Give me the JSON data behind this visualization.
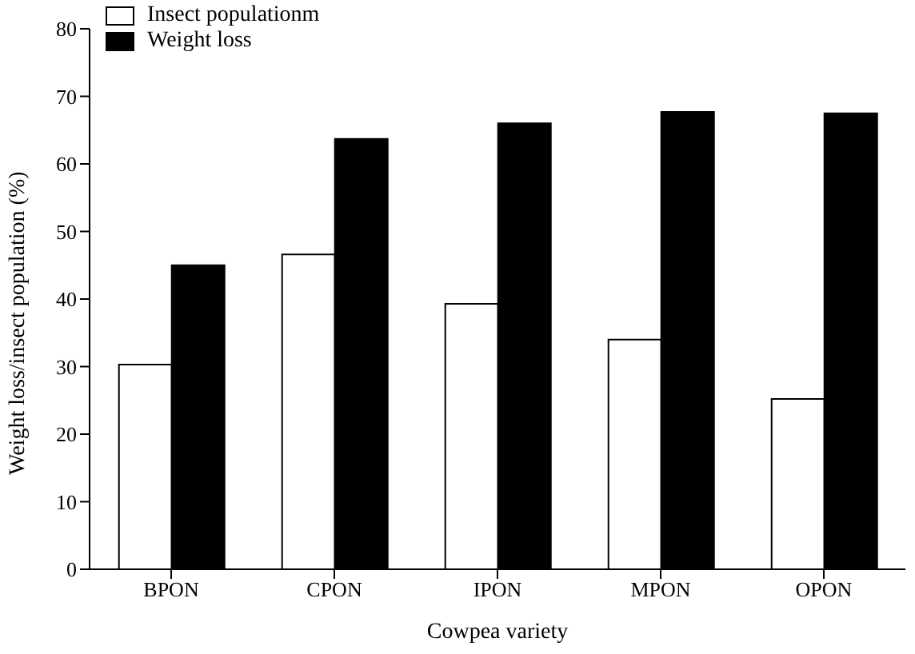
{
  "chart_data": {
    "type": "bar",
    "xlabel": "Cowpea variety",
    "ylabel": "Weight loss/insect population (%)",
    "categories": [
      "BPON",
      "CPON",
      "IPON",
      "MPON",
      "OPON"
    ],
    "series": [
      {
        "name": "Insect populationm",
        "color": "#ffffff",
        "values": [
          30.3,
          46.6,
          39.3,
          34.0,
          25.2
        ]
      },
      {
        "name": "Weight loss",
        "color": "#000000",
        "values": [
          45.0,
          63.7,
          66.0,
          67.7,
          67.5
        ]
      }
    ],
    "ylim": [
      0,
      80
    ],
    "yticks": [
      0,
      10,
      20,
      30,
      40,
      50,
      60,
      70,
      80
    ],
    "grid": false,
    "legend": "top left"
  }
}
